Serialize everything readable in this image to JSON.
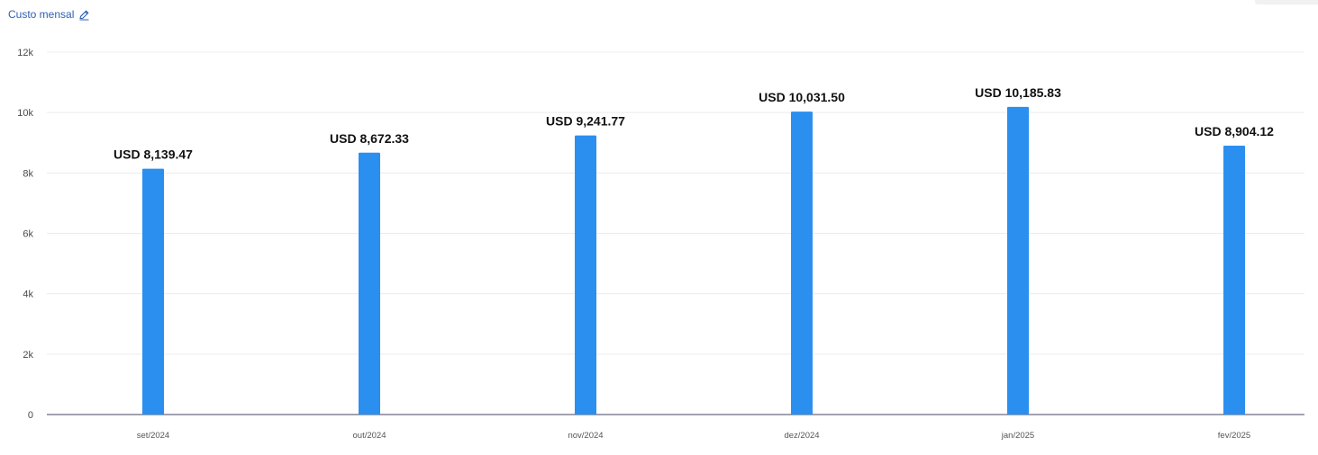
{
  "header": {
    "title": "Custo mensal",
    "edit_icon": "pencil-icon"
  },
  "colors": {
    "bar": "#2b8ff0",
    "title": "#2f5fb3",
    "grid": "#ececec",
    "axis": "#6a6a80"
  },
  "chart_data": {
    "type": "bar",
    "title": "",
    "xlabel": "",
    "ylabel": "",
    "ylim": [
      0,
      12000
    ],
    "yticks": [
      0,
      2000,
      4000,
      6000,
      8000,
      10000,
      12000
    ],
    "ytick_labels": [
      "0",
      "2k",
      "4k",
      "6k",
      "8k",
      "10k",
      "12k"
    ],
    "categories": [
      "set/2024",
      "out/2024",
      "nov/2024",
      "dez/2024",
      "jan/2025",
      "fev/2025"
    ],
    "values": [
      8139.47,
      8672.33,
      9241.77,
      10031.5,
      10185.83,
      8904.12
    ],
    "data_labels": [
      "USD 8,139.47",
      "USD 8,672.33",
      "USD 9,241.77",
      "USD 10,031.50",
      "USD 10,185.83",
      "USD 8,904.12"
    ],
    "grid": true,
    "legend": "none"
  }
}
